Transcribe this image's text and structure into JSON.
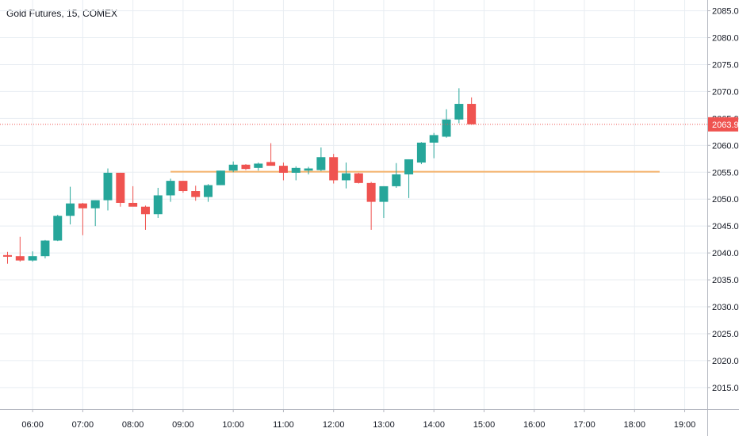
{
  "title": "Gold Futures, 15, COMEX",
  "colors": {
    "up": "#26a69a",
    "down": "#ef5350",
    "grid": "#e8edf2",
    "axis": "#b2b5be",
    "hline": "#f5b36b",
    "last_price": "#ef5350"
  },
  "chart_data": {
    "type": "candlestick",
    "title": "Gold Futures, 15, COMEX",
    "interval_minutes": 15,
    "ylim": [
      2011,
      2087
    ],
    "yticks": [
      "2015.0",
      "2020.0",
      "2025.0",
      "2030.0",
      "2035.0",
      "2040.0",
      "2045.0",
      "2050.0",
      "2055.0",
      "2060.0",
      "2065.0",
      "2070.0",
      "2075.0",
      "2080.0",
      "2085.0"
    ],
    "xlim": [
      "05:21",
      "19:27"
    ],
    "xticks": [
      "06:00",
      "07:00",
      "08:00",
      "09:00",
      "10:00",
      "11:00",
      "12:00",
      "13:00",
      "14:00",
      "15:00",
      "16:00",
      "17:00",
      "18:00",
      "19:00"
    ],
    "grid": true,
    "last_price": "2063.9",
    "horizontal_line": {
      "value": 2055.1,
      "from": "08:45",
      "to": "18:30"
    },
    "candles": [
      {
        "t": "05:30",
        "o": 2039.6,
        "h": 2040.2,
        "l": 2038.0,
        "c": 2039.3
      },
      {
        "t": "05:45",
        "o": 2039.4,
        "h": 2043.0,
        "l": 2038.4,
        "c": 2038.6
      },
      {
        "t": "06:00",
        "o": 2038.6,
        "h": 2040.3,
        "l": 2038.4,
        "c": 2039.4
      },
      {
        "t": "06:15",
        "o": 2039.4,
        "h": 2042.4,
        "l": 2039.0,
        "c": 2042.3
      },
      {
        "t": "06:30",
        "o": 2042.3,
        "h": 2047.1,
        "l": 2042.2,
        "c": 2046.9
      },
      {
        "t": "06:45",
        "o": 2046.9,
        "h": 2052.3,
        "l": 2045.3,
        "c": 2049.2
      },
      {
        "t": "07:00",
        "o": 2049.2,
        "h": 2049.3,
        "l": 2043.3,
        "c": 2048.3
      },
      {
        "t": "07:15",
        "o": 2048.3,
        "h": 2049.8,
        "l": 2045.0,
        "c": 2049.8
      },
      {
        "t": "07:30",
        "o": 2049.8,
        "h": 2055.7,
        "l": 2047.9,
        "c": 2054.9
      },
      {
        "t": "07:45",
        "o": 2054.9,
        "h": 2054.9,
        "l": 2048.6,
        "c": 2049.3
      },
      {
        "t": "08:00",
        "o": 2049.3,
        "h": 2052.4,
        "l": 2048.8,
        "c": 2048.6
      },
      {
        "t": "08:15",
        "o": 2048.6,
        "h": 2048.8,
        "l": 2044.3,
        "c": 2047.2
      },
      {
        "t": "08:30",
        "o": 2047.2,
        "h": 2052.1,
        "l": 2046.5,
        "c": 2050.7
      },
      {
        "t": "08:45",
        "o": 2050.7,
        "h": 2053.8,
        "l": 2049.5,
        "c": 2053.4
      },
      {
        "t": "09:00",
        "o": 2053.4,
        "h": 2053.4,
        "l": 2051.2,
        "c": 2051.5
      },
      {
        "t": "09:15",
        "o": 2051.5,
        "h": 2052.5,
        "l": 2049.7,
        "c": 2050.4
      },
      {
        "t": "09:30",
        "o": 2050.4,
        "h": 2052.8,
        "l": 2049.5,
        "c": 2052.6
      },
      {
        "t": "09:45",
        "o": 2052.6,
        "h": 2055.3,
        "l": 2052.6,
        "c": 2055.3
      },
      {
        "t": "10:00",
        "o": 2055.3,
        "h": 2057.0,
        "l": 2055.0,
        "c": 2056.4
      },
      {
        "t": "10:15",
        "o": 2056.4,
        "h": 2056.5,
        "l": 2055.4,
        "c": 2055.6
      },
      {
        "t": "10:30",
        "o": 2055.8,
        "h": 2056.8,
        "l": 2055.3,
        "c": 2056.6
      },
      {
        "t": "10:45",
        "o": 2056.9,
        "h": 2060.4,
        "l": 2056.3,
        "c": 2056.2
      },
      {
        "t": "11:00",
        "o": 2056.2,
        "h": 2056.8,
        "l": 2053.5,
        "c": 2054.9
      },
      {
        "t": "11:15",
        "o": 2054.9,
        "h": 2056.1,
        "l": 2053.5,
        "c": 2055.8
      },
      {
        "t": "11:30",
        "o": 2055.3,
        "h": 2056.0,
        "l": 2054.6,
        "c": 2055.7
      },
      {
        "t": "11:45",
        "o": 2055.4,
        "h": 2059.6,
        "l": 2055.2,
        "c": 2057.8
      },
      {
        "t": "12:00",
        "o": 2057.8,
        "h": 2058.4,
        "l": 2052.9,
        "c": 2053.5
      },
      {
        "t": "12:15",
        "o": 2053.5,
        "h": 2056.8,
        "l": 2052.0,
        "c": 2054.8
      },
      {
        "t": "12:30",
        "o": 2054.8,
        "h": 2054.9,
        "l": 2052.9,
        "c": 2053.0
      },
      {
        "t": "12:45",
        "o": 2053.0,
        "h": 2053.2,
        "l": 2044.3,
        "c": 2049.5
      },
      {
        "t": "13:00",
        "o": 2049.5,
        "h": 2052.4,
        "l": 2046.5,
        "c": 2052.4
      },
      {
        "t": "13:15",
        "o": 2052.4,
        "h": 2056.7,
        "l": 2052.1,
        "c": 2054.6
      },
      {
        "t": "13:30",
        "o": 2054.6,
        "h": 2057.4,
        "l": 2050.2,
        "c": 2057.4
      },
      {
        "t": "13:45",
        "o": 2056.8,
        "h": 2060.6,
        "l": 2056.5,
        "c": 2060.5
      },
      {
        "t": "14:00",
        "o": 2060.5,
        "h": 2062.3,
        "l": 2057.6,
        "c": 2061.9
      },
      {
        "t": "14:15",
        "o": 2061.6,
        "h": 2066.7,
        "l": 2061.4,
        "c": 2064.8
      },
      {
        "t": "14:30",
        "o": 2064.8,
        "h": 2070.6,
        "l": 2064.1,
        "c": 2067.7
      },
      {
        "t": "14:45",
        "o": 2067.7,
        "h": 2068.9,
        "l": 2063.8,
        "c": 2063.9
      }
    ]
  }
}
